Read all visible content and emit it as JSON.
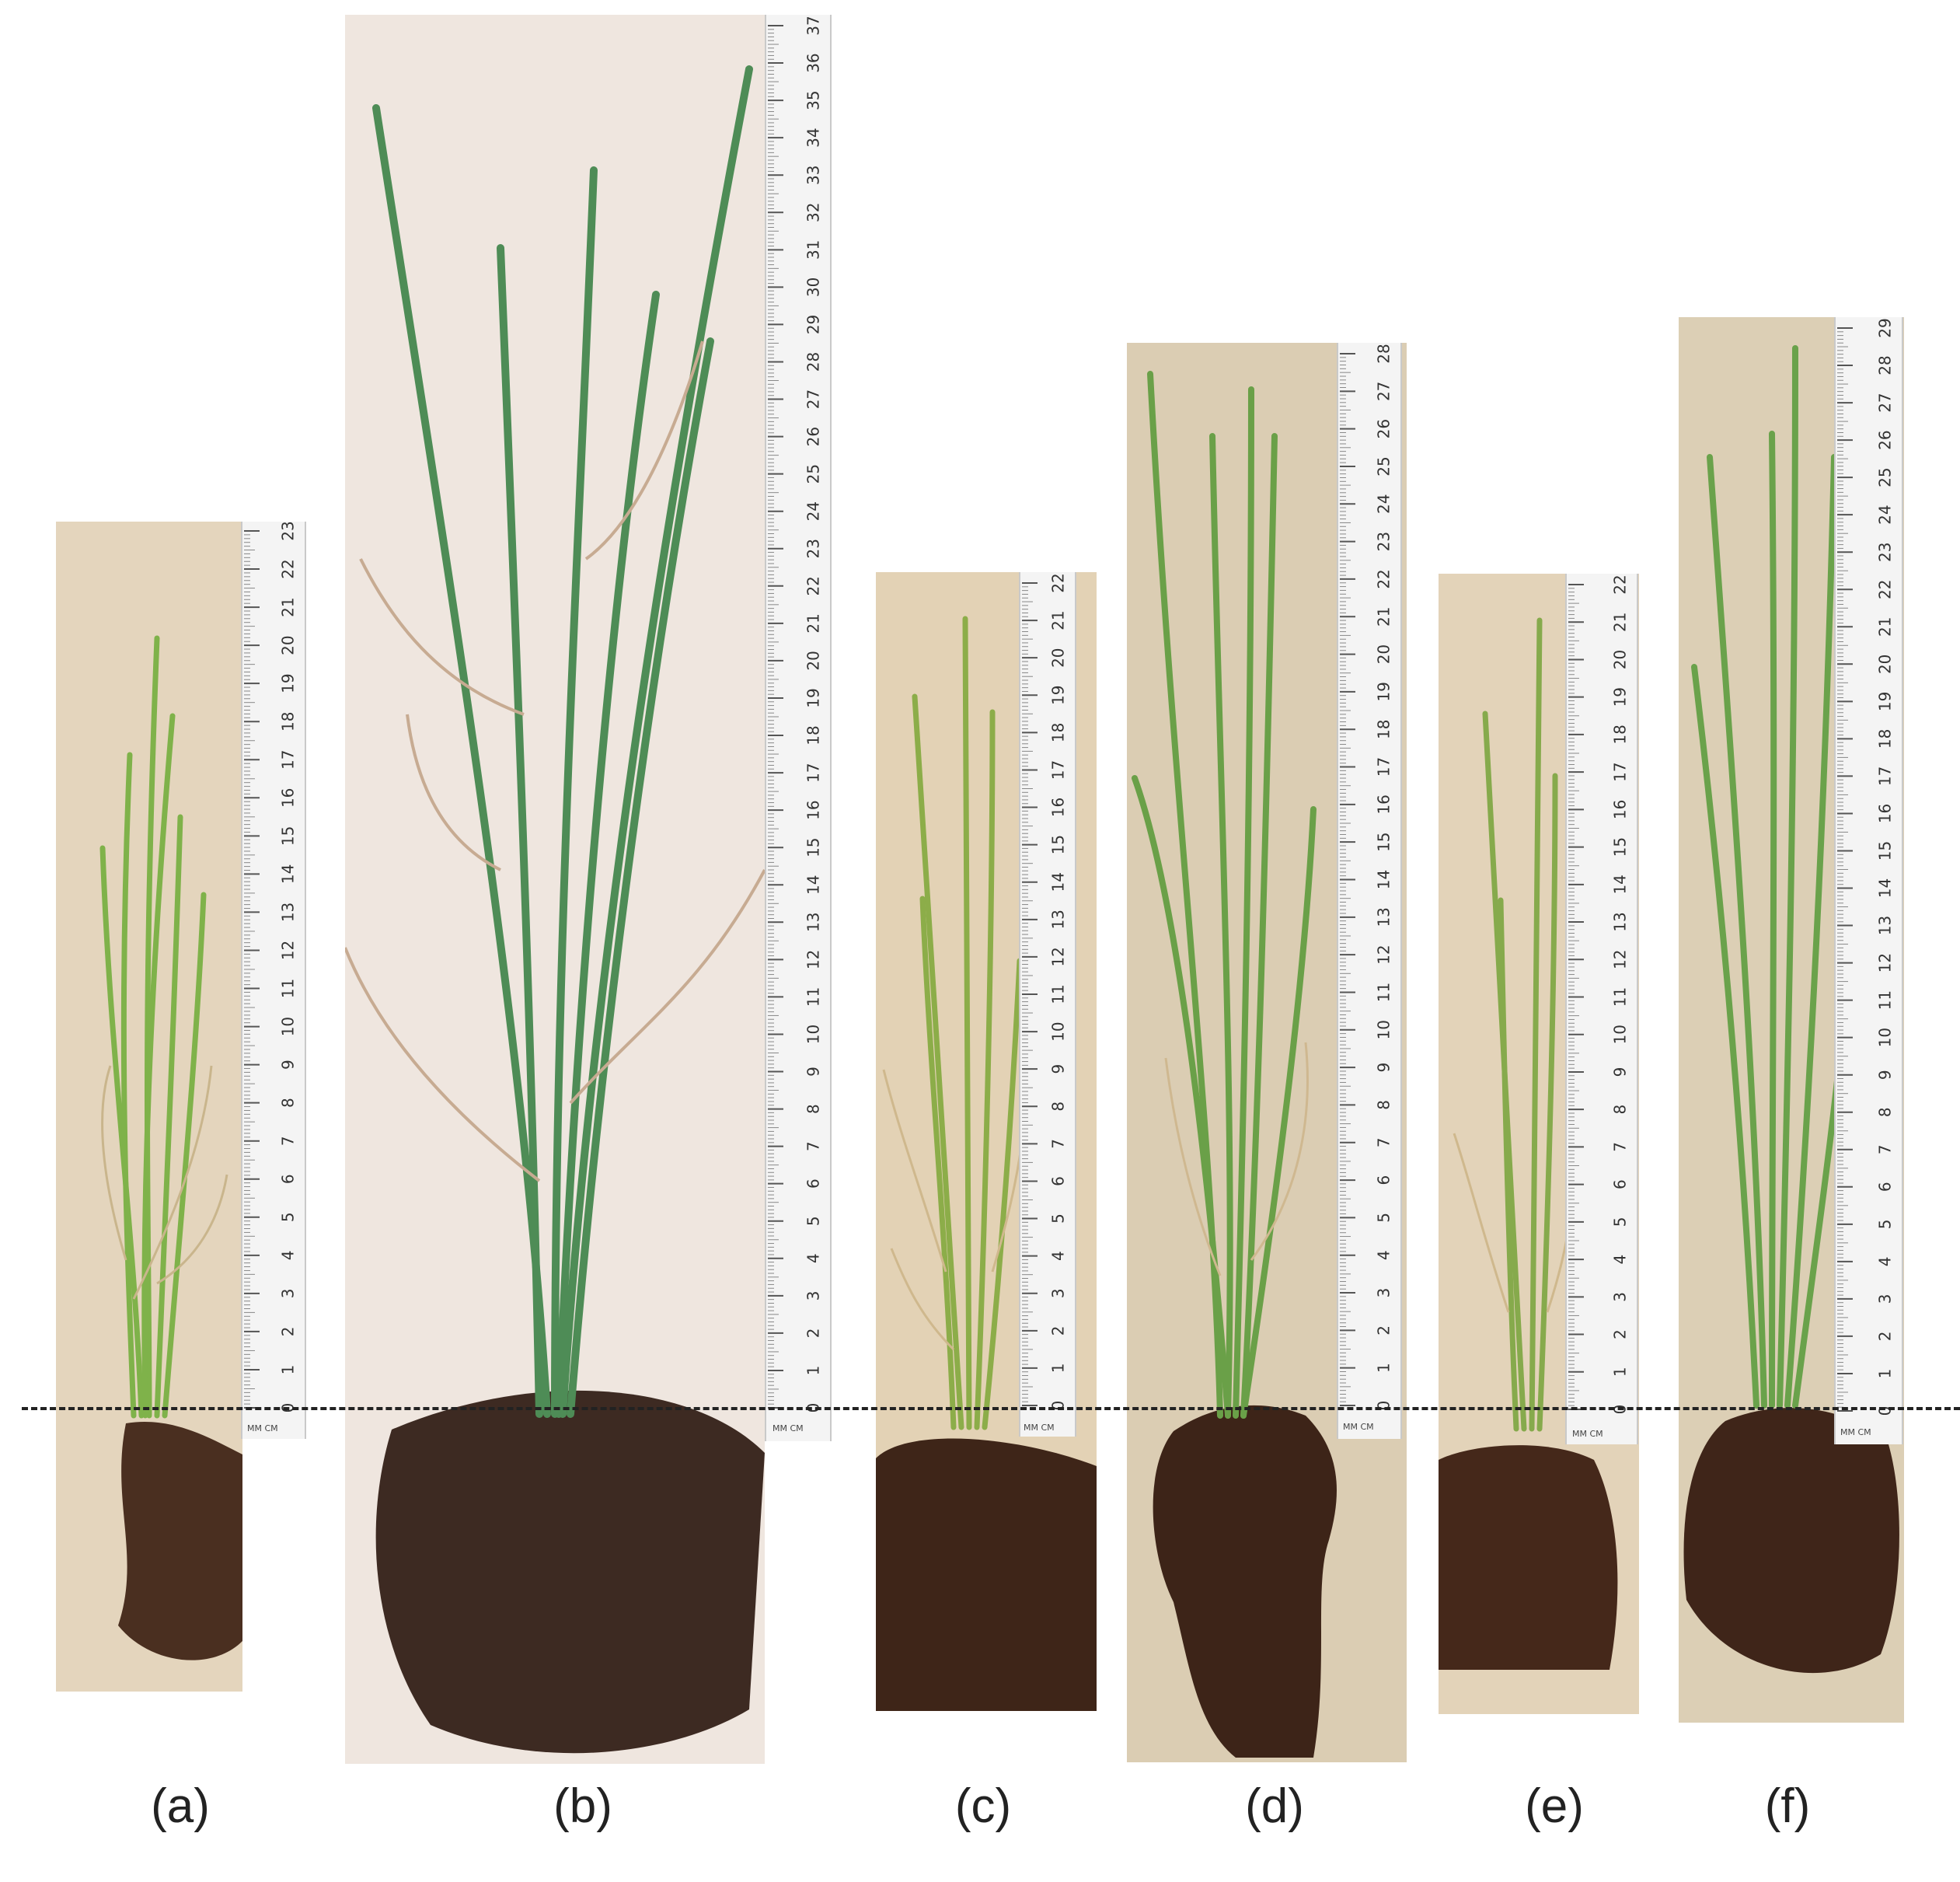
{
  "panels": [
    {
      "id": "a",
      "label": "(a)",
      "ruler_max": 23,
      "mmcm": "MM CM",
      "colors": {
        "bg": "#e4d5bd",
        "soil": "#4a2f20",
        "leaf": "#7fb24a"
      }
    },
    {
      "id": "b",
      "label": "(b)",
      "ruler_max": 37,
      "mmcm": "MM CM",
      "colors": {
        "bg": "#efe6df",
        "soil": "#3d2a22",
        "leaf": "#4e8c56"
      }
    },
    {
      "id": "c",
      "label": "(c)",
      "ruler_max": 22,
      "mmcm": "MM CM",
      "colors": {
        "bg": "#e3d2b5",
        "soil": "#3e2518",
        "leaf": "#8cad49"
      }
    },
    {
      "id": "d",
      "label": "(d)",
      "ruler_max": 28,
      "mmcm": "MM CM",
      "colors": {
        "bg": "#dbcdb3",
        "soil": "#3d2418",
        "leaf": "#6aa048"
      }
    },
    {
      "id": "e",
      "label": "(e)",
      "ruler_max": 22,
      "mmcm": "MM CM",
      "colors": {
        "bg": "#e3d3b9",
        "soil": "#45281a",
        "leaf": "#86aa4c"
      }
    },
    {
      "id": "f",
      "label": "(f)",
      "ruler_max": 29,
      "mmcm": "MM CM",
      "colors": {
        "bg": "#dccfb5",
        "soil": "#3f2519",
        "leaf": "#6aa24b"
      }
    }
  ]
}
